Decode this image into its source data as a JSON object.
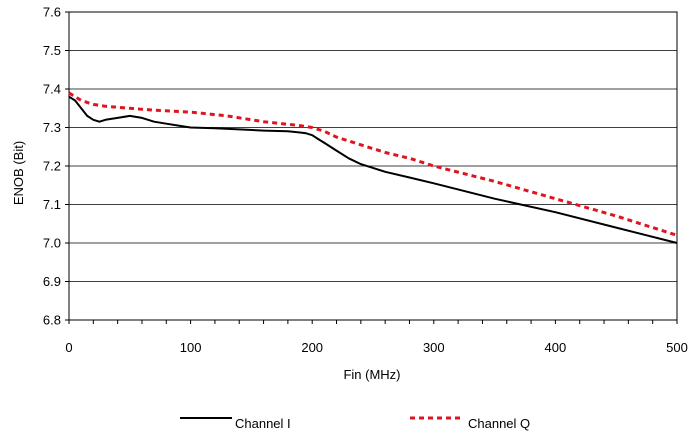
{
  "chart_data": {
    "type": "line",
    "title": "",
    "xlabel": "Fin (MHz)",
    "ylabel": "ENOB (Bit)",
    "xlim": [
      0,
      500
    ],
    "ylim": [
      6.8,
      7.6
    ],
    "xticks": [
      0,
      100,
      200,
      300,
      400,
      500
    ],
    "xtick_labels": [
      "0",
      "100",
      "200",
      "300",
      "400",
      "500"
    ],
    "yticks": [
      6.8,
      6.9,
      7.0,
      7.1,
      7.2,
      7.3,
      7.4,
      7.5,
      7.6
    ],
    "ytick_labels": [
      "6.8",
      "6.9",
      "7.0",
      "7.1",
      "7.2",
      "7.3",
      "7.4",
      "7.5",
      "7.6"
    ],
    "grid": "horizontal",
    "legend_position": "bottom",
    "series": [
      {
        "name": "Channel I",
        "color": "#000000",
        "style": "solid",
        "x": [
          0,
          5,
          10,
          15,
          20,
          25,
          30,
          40,
          50,
          60,
          70,
          80,
          90,
          100,
          120,
          140,
          160,
          180,
          190,
          195,
          200,
          205,
          210,
          220,
          230,
          240,
          250,
          260,
          280,
          300,
          350,
          400,
          450,
          500
        ],
        "y": [
          7.38,
          7.37,
          7.35,
          7.33,
          7.32,
          7.315,
          7.32,
          7.325,
          7.33,
          7.325,
          7.315,
          7.31,
          7.305,
          7.3,
          7.298,
          7.295,
          7.292,
          7.29,
          7.287,
          7.285,
          7.28,
          7.27,
          7.26,
          7.24,
          7.22,
          7.205,
          7.195,
          7.185,
          7.17,
          7.155,
          7.115,
          7.08,
          7.04,
          7.0
        ]
      },
      {
        "name": "Channel Q",
        "color": "#e0141e",
        "style": "dashed",
        "x": [
          0,
          10,
          20,
          30,
          50,
          70,
          100,
          130,
          160,
          190,
          200,
          210,
          220,
          240,
          260,
          280,
          300,
          350,
          400,
          450,
          500
        ],
        "y": [
          7.39,
          7.37,
          7.36,
          7.355,
          7.35,
          7.345,
          7.34,
          7.33,
          7.315,
          7.305,
          7.3,
          7.29,
          7.275,
          7.255,
          7.235,
          7.22,
          7.2,
          7.16,
          7.115,
          7.07,
          7.02
        ]
      }
    ]
  }
}
